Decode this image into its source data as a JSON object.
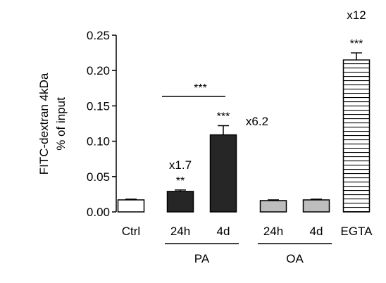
{
  "chart_data": {
    "type": "bar",
    "ylabel_lines": [
      "FITC-dextran 4kDa",
      "% of input"
    ],
    "ylim": [
      0,
      0.25
    ],
    "yticks": [
      "0.00",
      "0.05",
      "0.10",
      "0.15",
      "0.20",
      "0.25"
    ],
    "categories": [
      "Ctrl",
      "24h",
      "4d",
      "24h",
      "4d",
      "EGTA"
    ],
    "groups": [
      {
        "label": "PA",
        "members": [
          1,
          2
        ]
      },
      {
        "label": "OA",
        "members": [
          3,
          4
        ]
      }
    ],
    "bars": [
      {
        "category": "Ctrl",
        "value": 0.017,
        "error": 0.001,
        "color": "#ffffff",
        "fill": "solid",
        "stars": "",
        "fold": ""
      },
      {
        "category": "24h",
        "group": "PA",
        "value": 0.029,
        "error": 0.002,
        "color": "#262626",
        "fill": "solid",
        "stars": "**",
        "fold": "x1.7"
      },
      {
        "category": "4d",
        "group": "PA",
        "value": 0.109,
        "error": 0.013,
        "color": "#262626",
        "fill": "solid",
        "stars": "***",
        "fold": "x6.2"
      },
      {
        "category": "24h",
        "group": "OA",
        "value": 0.016,
        "error": 0.001,
        "color": "#bdbdbd",
        "fill": "solid",
        "stars": "",
        "fold": ""
      },
      {
        "category": "4d",
        "group": "OA",
        "value": 0.017,
        "error": 0.001,
        "color": "#bdbdbd",
        "fill": "solid",
        "stars": "",
        "fold": ""
      },
      {
        "category": "EGTA",
        "value": 0.215,
        "error": 0.01,
        "color": "#ffffff",
        "fill": "horizontal-stripes",
        "stars": "***",
        "fold": "x12"
      }
    ],
    "comparison": {
      "from": 1,
      "to": 2,
      "label": "***"
    }
  }
}
